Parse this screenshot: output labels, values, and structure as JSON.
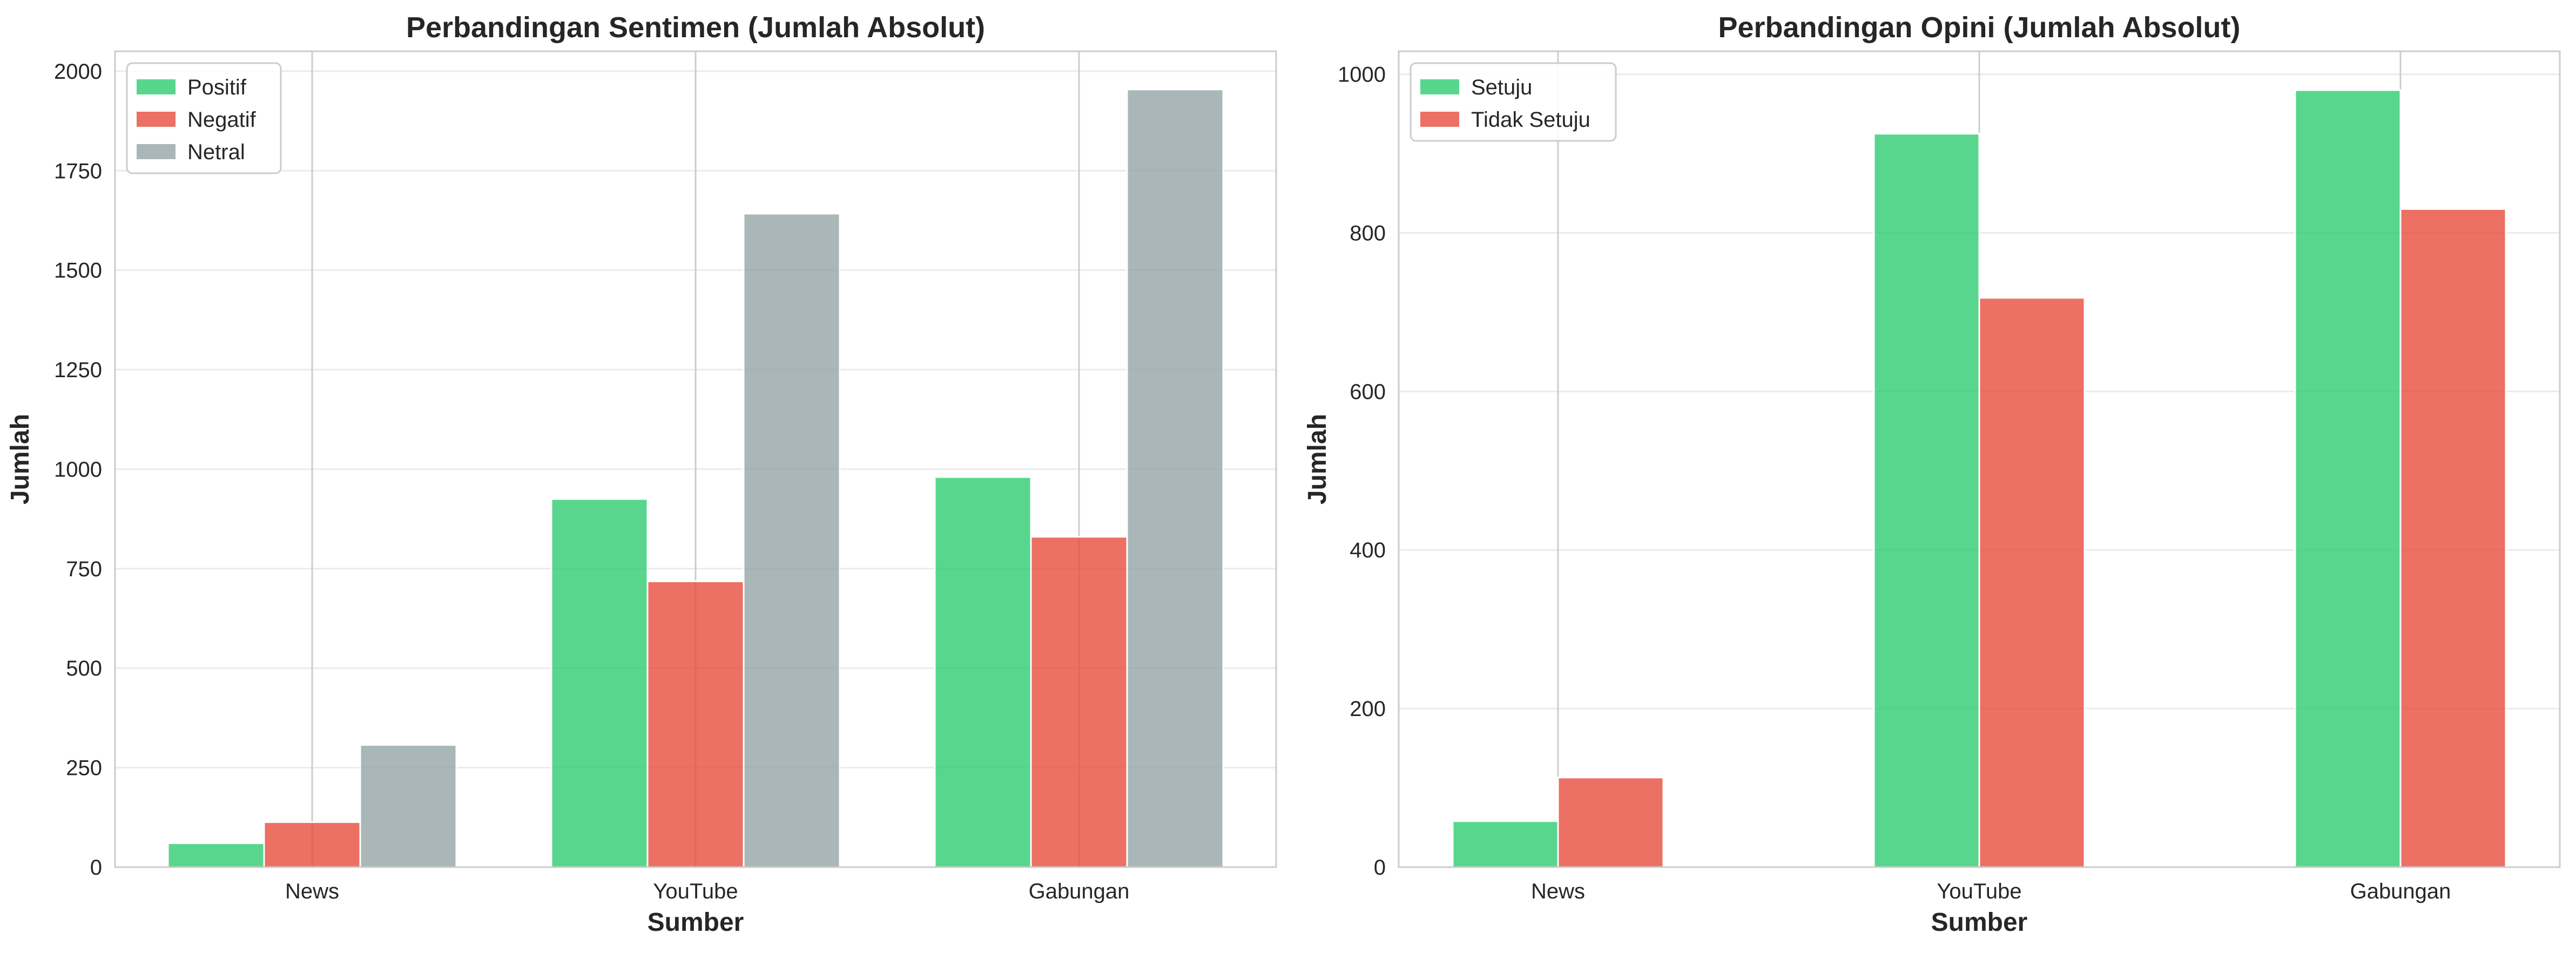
{
  "chart_data": [
    {
      "type": "bar",
      "title": "Perbandingan Sentimen (Jumlah Absolut)",
      "xlabel": "Sumber",
      "ylabel": "Jumlah",
      "categories": [
        "News",
        "YouTube",
        "Gabungan"
      ],
      "series": [
        {
          "name": "Positif",
          "values": [
            60,
            925,
            980
          ],
          "color": "#2ecc71"
        },
        {
          "name": "Negatif",
          "values": [
            113,
            718,
            830
          ],
          "color": "#e74c3c"
        },
        {
          "name": "Netral",
          "values": [
            307,
            1642,
            1954
          ],
          "color": "#95a5a6"
        }
      ],
      "ylim": [
        0,
        2050
      ],
      "yticks": [
        0,
        250,
        500,
        750,
        1000,
        1250,
        1500,
        1750,
        2000
      ],
      "grid": true,
      "legend_position": "top-left"
    },
    {
      "type": "bar",
      "title": "Perbandingan Opini (Jumlah Absolut)",
      "xlabel": "Sumber",
      "ylabel": "Jumlah",
      "categories": [
        "News",
        "YouTube",
        "Gabungan"
      ],
      "series": [
        {
          "name": "Setuju",
          "values": [
            58,
            925,
            980
          ],
          "color": "#2ecc71"
        },
        {
          "name": "Tidak Setuju",
          "values": [
            113,
            718,
            830
          ],
          "color": "#e74c3c"
        }
      ],
      "ylim": [
        0,
        1029
      ],
      "yticks": [
        0,
        200,
        400,
        600,
        800,
        1000
      ],
      "grid": true,
      "legend_position": "top-left"
    }
  ]
}
